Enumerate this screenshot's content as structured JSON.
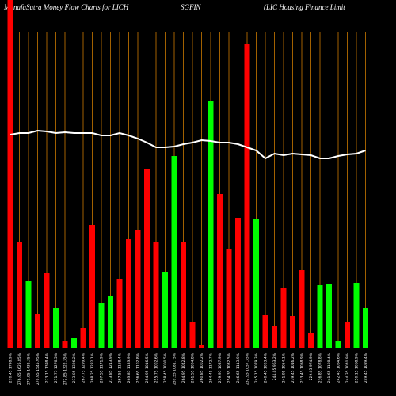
{
  "chart_data": {
    "type": "bar",
    "title": "MunafaSutra  Money Flow  Charts for LICH",
    "subtitle": "SGFIN",
    "annotation": "(LIC Housing Finance   Limit",
    "categories": [
      "270.45 1798.9%",
      "276.95 1625.85%",
      "271.95 1432.35%",
      "270.95 1545.95%",
      "273.15 1398.4%",
      "271.75 1276.5%",
      "272.85 1322.35%",
      "273.05 1326.2%",
      "267.75 1299.4%",
      "268.25 1282.1%",
      "267.55 1171.9%",
      "273.85 1213.9%",
      "267.55 1168.4%",
      "263.85 1183.9%",
      "256.65 1102.8%",
      "254.95 1016.5%",
      "255.75 1002.6%",
      "258.45 1000.5%",
      "259.55 1081.75%",
      "264.95 1042.8%",
      "261.55 1004.8%",
      "260.85 1002.2%",
      "264.45 1172.7%",
      "259.95 1087.9%",
      "254.35 1032.5%",
      "246.65 1113.9%",
      "232.95 1057.35%",
      "245.15 1079.3%",
      "240.45 1003.4%",
      "244.05 963.2%",
      "241.95 1054.1%",
      "239.45 1016.2%",
      "233.45 1058.9%",
      "229.05 974.9%",
      "236.85 1078.8%",
      "241.65 1108.4%",
      "242.45 1064.6%",
      "244.35 1040.9%",
      "250.15 1068.9%",
      "249.45 1089.4%"
    ],
    "series": [
      {
        "name": "Money Flow",
        "values": [
          440,
          135,
          85,
          44,
          95,
          51,
          10,
          13,
          26,
          156,
          57,
          66,
          88,
          138,
          149,
          227,
          134,
          97,
          243,
          135,
          33,
          4,
          313,
          195,
          125,
          165,
          385,
          163,
          42,
          28,
          76,
          41,
          99,
          19,
          80,
          82,
          10,
          34,
          83,
          51
        ],
        "colors": [
          "#ff0000",
          "#ff0000",
          "#00ff00",
          "#ff0000",
          "#ff0000",
          "#00ff00",
          "#ff0000",
          "#00ff00",
          "#ff0000",
          "#ff0000",
          "#00ff00",
          "#00ff00",
          "#ff0000",
          "#ff0000",
          "#ff0000",
          "#ff0000",
          "#ff0000",
          "#00ff00",
          "#00ff00",
          "#ff0000",
          "#ff0000",
          "#ff0000",
          "#00ff00",
          "#ff0000",
          "#ff0000",
          "#ff0000",
          "#ff0000",
          "#00ff00",
          "#ff0000",
          "#ff0000",
          "#ff0000",
          "#ff0000",
          "#ff0000",
          "#ff0000",
          "#00ff00",
          "#00ff00",
          "#00ff00",
          "#ff0000",
          "#00ff00",
          "#00ff00"
        ]
      },
      {
        "name": "Price",
        "type": "line",
        "color": "#ffffff",
        "values": [
          270,
          272,
          272,
          275,
          274,
          272,
          273,
          272,
          272,
          272,
          269,
          269,
          272,
          269,
          265,
          260,
          254,
          254,
          255,
          258,
          260,
          263,
          262,
          260,
          260,
          258,
          254,
          250,
          240,
          246,
          244,
          246,
          245,
          244,
          240,
          240,
          243,
          245,
          246,
          250
        ]
      }
    ],
    "ylim": [
      0,
      440
    ],
    "guide_color": "#cc7a00"
  }
}
